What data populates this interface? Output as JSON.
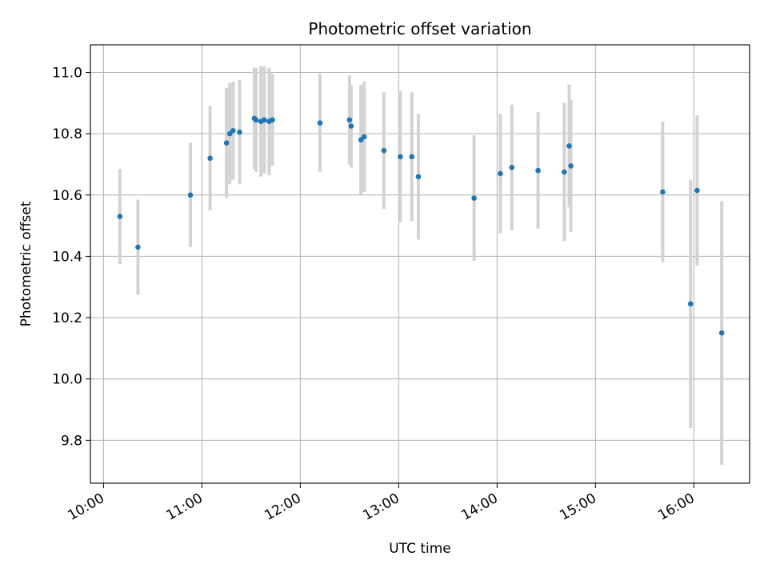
{
  "chart_data": {
    "type": "scatter",
    "title": "Photometric offset variation",
    "xlabel": "UTC time",
    "ylabel": "Photometric offset",
    "x_ticks": [
      "10:00",
      "11:00",
      "12:00",
      "13:00",
      "14:00",
      "15:00",
      "16:00"
    ],
    "y_ticks": [
      "9.8",
      "10.0",
      "10.2",
      "10.4",
      "10.6",
      "10.8",
      "11.0"
    ],
    "xlim": [
      "09:52",
      "16:34"
    ],
    "ylim": [
      9.66,
      11.09
    ],
    "grid": true,
    "colors": {
      "points": "#1f77b4",
      "errorbars": "#d3d3d3",
      "grid": "#b0b0b0"
    },
    "points": [
      {
        "time": "10:10",
        "y": 10.53,
        "err": 0.155
      },
      {
        "time": "10:21",
        "y": 10.43,
        "err": 0.155
      },
      {
        "time": "10:53",
        "y": 10.6,
        "err": 0.17
      },
      {
        "time": "11:05",
        "y": 10.72,
        "err": 0.17
      },
      {
        "time": "11:15",
        "y": 10.77,
        "err": 0.18
      },
      {
        "time": "11:17",
        "y": 10.8,
        "err": 0.165
      },
      {
        "time": "11:19",
        "y": 10.81,
        "err": 0.16
      },
      {
        "time": "11:23",
        "y": 10.805,
        "err": 0.17
      },
      {
        "time": "11:32",
        "y": 10.85,
        "err": 0.165
      },
      {
        "time": "11:33",
        "y": 10.845,
        "err": 0.17
      },
      {
        "time": "11:36",
        "y": 10.84,
        "err": 0.18
      },
      {
        "time": "11:38",
        "y": 10.845,
        "err": 0.175
      },
      {
        "time": "11:41",
        "y": 10.84,
        "err": 0.175
      },
      {
        "time": "11:43",
        "y": 10.845,
        "err": 0.15
      },
      {
        "time": "12:12",
        "y": 10.835,
        "err": 0.16
      },
      {
        "time": "12:30",
        "y": 10.845,
        "err": 0.145
      },
      {
        "time": "12:31",
        "y": 10.825,
        "err": 0.135
      },
      {
        "time": "12:37",
        "y": 10.78,
        "err": 0.18
      },
      {
        "time": "12:39",
        "y": 10.79,
        "err": 0.18
      },
      {
        "time": "12:51",
        "y": 10.745,
        "err": 0.19
      },
      {
        "time": "13:01",
        "y": 10.725,
        "err": 0.215
      },
      {
        "time": "13:08",
        "y": 10.725,
        "err": 0.21
      },
      {
        "time": "13:12",
        "y": 10.66,
        "err": 0.205
      },
      {
        "time": "13:46",
        "y": 10.59,
        "err": 0.205
      },
      {
        "time": "14:02",
        "y": 10.67,
        "err": 0.195
      },
      {
        "time": "14:09",
        "y": 10.69,
        "err": 0.205
      },
      {
        "time": "14:25",
        "y": 10.68,
        "err": 0.19
      },
      {
        "time": "14:41",
        "y": 10.675,
        "err": 0.225
      },
      {
        "time": "14:44",
        "y": 10.76,
        "err": 0.2
      },
      {
        "time": "14:45",
        "y": 10.695,
        "err": 0.215
      },
      {
        "time": "15:41",
        "y": 10.61,
        "err": 0.23
      },
      {
        "time": "15:58",
        "y": 10.245,
        "err": 0.405
      },
      {
        "time": "16:02",
        "y": 10.615,
        "err": 0.245
      },
      {
        "time": "16:17",
        "y": 10.15,
        "err": 0.43
      }
    ]
  }
}
